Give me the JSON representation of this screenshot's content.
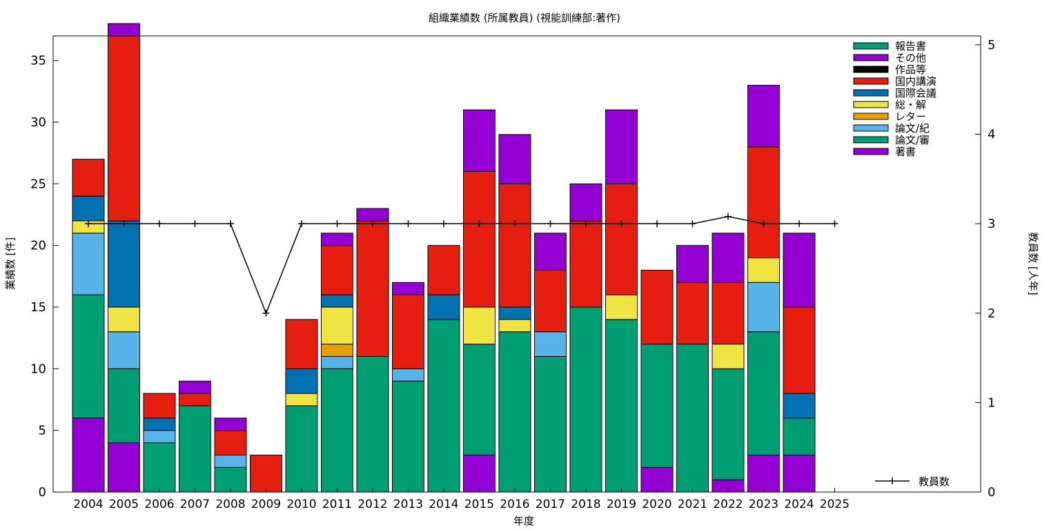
{
  "chart_data": {
    "type": "bar",
    "stacked": true,
    "title": "組織業績数 (所属教員) (視能訓練部:著作)",
    "xlabel": "年度",
    "ylabel": "業績数 [件]",
    "y2label": "教員数 [人年]",
    "ylim": [
      0,
      37
    ],
    "y2lim": [
      0,
      5.1
    ],
    "yticks": [
      0,
      5,
      10,
      15,
      20,
      25,
      30,
      35
    ],
    "y2ticks": [
      0,
      1,
      2,
      3,
      4,
      5
    ],
    "grid": false,
    "legend_position": "top-right",
    "categories": [
      "2004",
      "2005",
      "2006",
      "2007",
      "2008",
      "2009",
      "2010",
      "2011",
      "2012",
      "2013",
      "2014",
      "2015",
      "2016",
      "2017",
      "2018",
      "2019",
      "2020",
      "2021",
      "2022",
      "2023",
      "2024",
      "2025"
    ],
    "series": [
      {
        "name": "著書",
        "color": "#9400d3",
        "values": [
          6,
          4,
          0,
          0,
          0,
          0,
          0,
          0,
          0,
          0,
          0,
          3,
          0,
          0,
          0,
          0,
          2,
          0,
          1,
          3,
          3,
          0
        ]
      },
      {
        "name": "論文/審",
        "color": "#009e73",
        "values": [
          10,
          6,
          4,
          7,
          2,
          0,
          7,
          10,
          11,
          9,
          14,
          9,
          13,
          11,
          15,
          14,
          10,
          12,
          9,
          10,
          3,
          0
        ]
      },
      {
        "name": "論文/紀",
        "color": "#56b4e9",
        "values": [
          5,
          3,
          1,
          0,
          1,
          0,
          0,
          1,
          0,
          1,
          0,
          0,
          0,
          2,
          0,
          0,
          0,
          0,
          0,
          4,
          0,
          0
        ]
      },
      {
        "name": "レター",
        "color": "#e69f00",
        "values": [
          0,
          0,
          0,
          0,
          0,
          0,
          0,
          1,
          0,
          0,
          0,
          0,
          0,
          0,
          0,
          0,
          0,
          0,
          0,
          0,
          0,
          0
        ]
      },
      {
        "name": "総・解",
        "color": "#f0e442",
        "values": [
          1,
          2,
          0,
          0,
          0,
          0,
          1,
          3,
          0,
          0,
          0,
          3,
          1,
          0,
          0,
          2,
          0,
          0,
          2,
          2,
          0,
          0
        ]
      },
      {
        "name": "国際会議",
        "color": "#0072b2",
        "values": [
          2,
          7,
          1,
          0,
          0,
          0,
          2,
          1,
          0,
          0,
          2,
          0,
          1,
          0,
          0,
          0,
          0,
          0,
          0,
          0,
          2,
          0
        ]
      },
      {
        "name": "国内講演",
        "color": "#e51e10",
        "values": [
          3,
          15,
          2,
          1,
          2,
          3,
          4,
          4,
          11,
          6,
          4,
          11,
          10,
          5,
          7,
          9,
          6,
          5,
          5,
          9,
          7,
          0
        ]
      },
      {
        "name": "作品等",
        "color": "#000000",
        "values": [
          0,
          0,
          0,
          0,
          0,
          0,
          0,
          0,
          0,
          0,
          0,
          0,
          0,
          0,
          0,
          0,
          0,
          0,
          0,
          0,
          0,
          0
        ]
      },
      {
        "name": "その他",
        "color": "#9400d3",
        "values": [
          0,
          1,
          0,
          1,
          1,
          0,
          0,
          1,
          1,
          1,
          0,
          5,
          4,
          3,
          3,
          6,
          0,
          3,
          4,
          5,
          6,
          0
        ]
      },
      {
        "name": "報告書",
        "color": "#009e73",
        "values": [
          0,
          0,
          0,
          0,
          0,
          0,
          0,
          0,
          0,
          0,
          0,
          0,
          0,
          0,
          0,
          0,
          0,
          0,
          0,
          0,
          0,
          0
        ]
      }
    ],
    "line_series": {
      "name": "教員数",
      "axis": "y2",
      "color": "#000000",
      "values": [
        3,
        3,
        3,
        3,
        3,
        2,
        3,
        3,
        3,
        3,
        3,
        3,
        3,
        3,
        3,
        3,
        3,
        3,
        3.08,
        3,
        3,
        3
      ]
    }
  }
}
